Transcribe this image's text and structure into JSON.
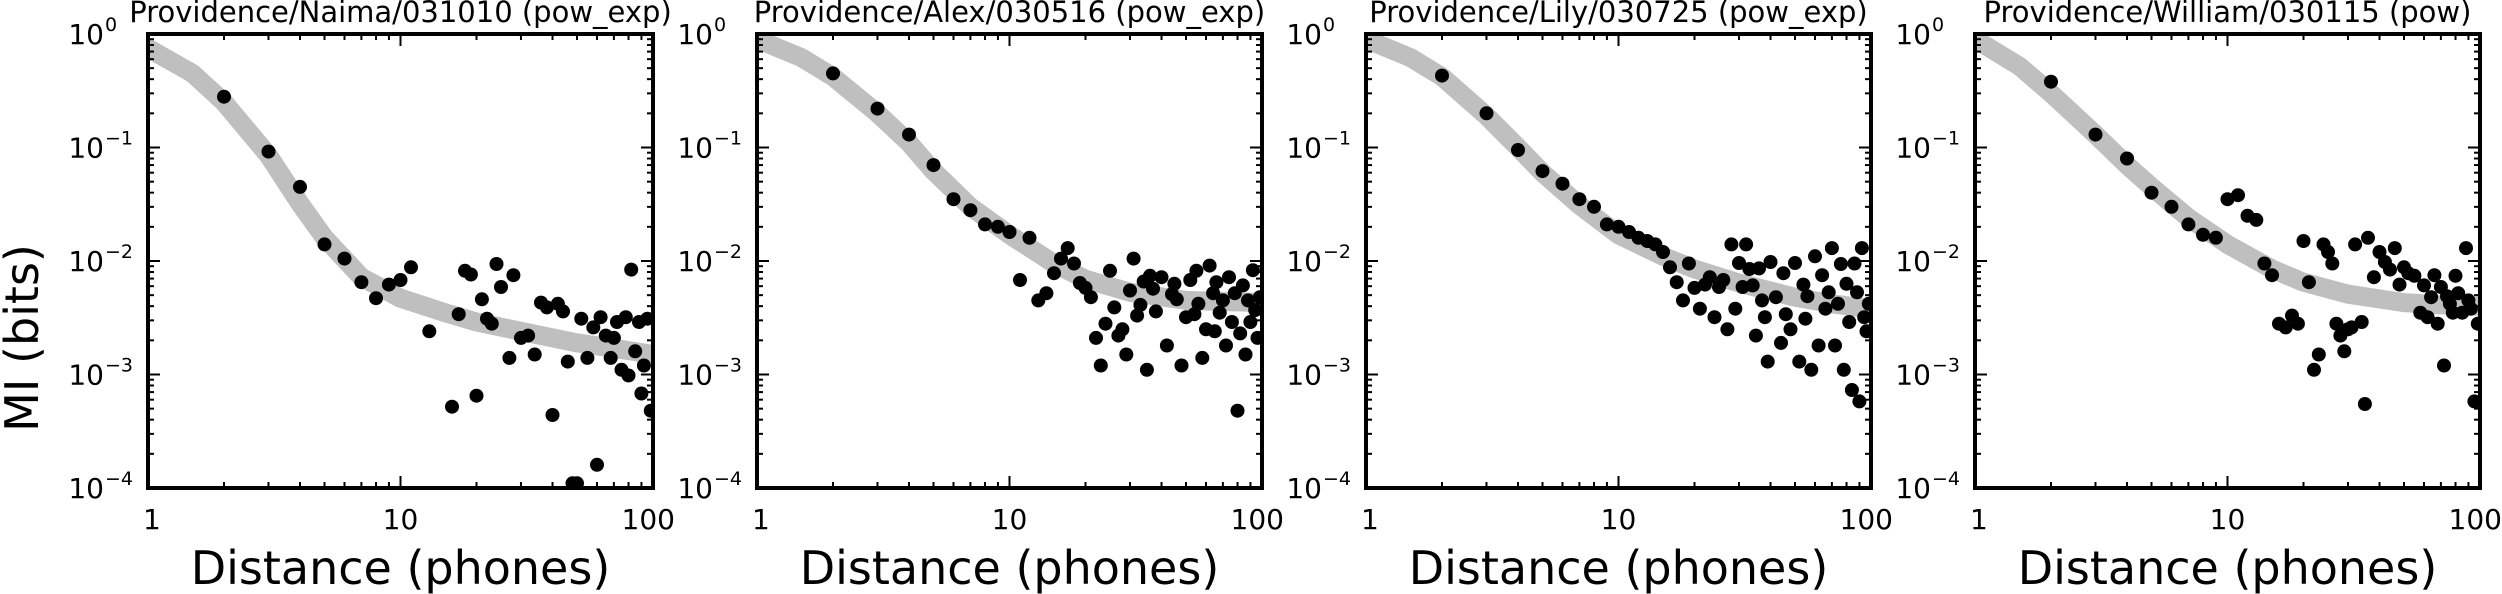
{
  "figure": {
    "ylabel": "MI (bits)"
  },
  "chart_data": [
    {
      "type": "scatter",
      "title": "Providence/Naima/031010 (pow_exp)",
      "xlabel": "Distance (phones)",
      "ylabel": "MI (bits)",
      "xscale": "log",
      "yscale": "log",
      "xlim": [
        1,
        100
      ],
      "ylim": [
        0.0001,
        1
      ],
      "x_ticks": [
        "1",
        "10",
        "100"
      ],
      "y_ticks": [
        {
          "base": "10",
          "exp": "−4"
        },
        {
          "base": "10",
          "exp": "−3"
        },
        {
          "base": "10",
          "exp": "−2"
        },
        {
          "base": "10",
          "exp": "−1"
        },
        {
          "base": "10",
          "exp": "0"
        }
      ],
      "fit": {
        "color": "#bfbfbf",
        "x": [
          1,
          1.5,
          2,
          3,
          4,
          5,
          7,
          10,
          15,
          20,
          30,
          50,
          70,
          100
        ],
        "y": [
          0.75,
          0.45,
          0.25,
          0.085,
          0.032,
          0.016,
          0.0072,
          0.0047,
          0.0035,
          0.0029,
          0.0024,
          0.0019,
          0.0017,
          0.0015
        ]
      },
      "points": {
        "color": "#000000",
        "x": [
          2,
          3,
          4,
          5,
          6,
          7,
          8,
          9,
          10,
          11,
          13,
          16,
          17,
          18,
          19,
          20,
          21,
          22,
          23,
          24,
          25,
          27,
          28,
          30,
          32,
          34,
          36,
          38,
          40,
          42,
          44,
          46,
          48,
          50,
          52,
          55,
          58,
          60,
          62,
          65,
          68,
          70,
          72,
          75,
          78,
          80,
          82,
          85,
          88,
          90,
          92,
          95,
          98
        ],
        "y": [
          0.28,
          0.092,
          0.045,
          0.014,
          0.0105,
          0.0065,
          0.0047,
          0.0062,
          0.0068,
          0.0088,
          0.0024,
          0.00052,
          0.0034,
          0.0082,
          0.0076,
          0.00065,
          0.0046,
          0.0031,
          0.0028,
          0.0094,
          0.0059,
          0.0014,
          0.0075,
          0.0021,
          0.0022,
          0.0015,
          0.0043,
          0.0039,
          0.00044,
          0.0042,
          0.0036,
          0.0013,
          0.00011,
          0.00011,
          0.0031,
          0.0014,
          0.0026,
          0.00016,
          0.0032,
          0.0022,
          0.0014,
          0.0021,
          0.0029,
          0.0011,
          0.0032,
          0.00098,
          0.0084,
          0.0016,
          0.0029,
          0.00068,
          0.0012,
          0.0031,
          0.00048
        ]
      }
    },
    {
      "type": "scatter",
      "title": "Providence/Alex/030516 (pow_exp)",
      "xlabel": "Distance (phones)",
      "ylabel": "",
      "xscale": "log",
      "yscale": "log",
      "xlim": [
        1,
        100
      ],
      "ylim": [
        0.0001,
        1
      ],
      "x_ticks": [
        "1",
        "10",
        "100"
      ],
      "y_ticks": [
        {
          "base": "10",
          "exp": "−4"
        },
        {
          "base": "10",
          "exp": "−3"
        },
        {
          "base": "10",
          "exp": "−2"
        },
        {
          "base": "10",
          "exp": "−1"
        },
        {
          "base": "10",
          "exp": "0"
        }
      ],
      "fit": {
        "color": "#bfbfbf",
        "x": [
          1,
          1.5,
          2,
          3,
          4,
          5,
          7,
          10,
          15,
          20,
          30,
          50,
          70,
          100
        ],
        "y": [
          0.9,
          0.62,
          0.42,
          0.2,
          0.11,
          0.062,
          0.03,
          0.017,
          0.0095,
          0.0069,
          0.0053,
          0.0045,
          0.0044,
          0.0043
        ]
      },
      "points": {
        "color": "#000000",
        "x": [
          2,
          3,
          4,
          5,
          6,
          7,
          8,
          9,
          10,
          11,
          12,
          13,
          14,
          15,
          16,
          17,
          18,
          19,
          20,
          21,
          22,
          23,
          24,
          25,
          26,
          27,
          28,
          29,
          30,
          31,
          32,
          33,
          34,
          35,
          36,
          37,
          38,
          40,
          42,
          44,
          45,
          46,
          48,
          50,
          52,
          54,
          55,
          56,
          58,
          60,
          62,
          64,
          65,
          66,
          68,
          70,
          72,
          74,
          76,
          78,
          80,
          82,
          84,
          86,
          88,
          90,
          92,
          94,
          96,
          98
        ],
        "y": [
          0.45,
          0.22,
          0.13,
          0.07,
          0.035,
          0.028,
          0.021,
          0.02,
          0.018,
          0.0068,
          0.016,
          0.0045,
          0.0052,
          0.0078,
          0.0105,
          0.013,
          0.0095,
          0.0064,
          0.0058,
          0.0048,
          0.0021,
          0.0012,
          0.0028,
          0.0082,
          0.0039,
          0.0022,
          0.0025,
          0.0015,
          0.0055,
          0.0105,
          0.0033,
          0.0041,
          0.0066,
          0.0011,
          0.0074,
          0.0057,
          0.0036,
          0.0072,
          0.0018,
          0.0051,
          0.0063,
          0.0046,
          0.0012,
          0.0032,
          0.0068,
          0.0034,
          0.0082,
          0.0042,
          0.0014,
          0.0025,
          0.0091,
          0.0052,
          0.0024,
          0.0065,
          0.0035,
          0.0045,
          0.0018,
          0.0072,
          0.0029,
          0.0052,
          0.00048,
          0.0023,
          0.0061,
          0.0015,
          0.0045,
          0.0029,
          0.0083,
          0.0037,
          0.0021,
          0.0048
        ]
      }
    },
    {
      "type": "scatter",
      "title": "Providence/Lily/030725 (pow_exp)",
      "xlabel": "Distance (phones)",
      "ylabel": "",
      "xscale": "log",
      "yscale": "log",
      "xlim": [
        1,
        100
      ],
      "ylim": [
        0.0001,
        1
      ],
      "x_ticks": [
        "1",
        "10",
        "100"
      ],
      "y_ticks": [
        {
          "base": "10",
          "exp": "−4"
        },
        {
          "base": "10",
          "exp": "−3"
        },
        {
          "base": "10",
          "exp": "−2"
        },
        {
          "base": "10",
          "exp": "−1"
        },
        {
          "base": "10",
          "exp": "0"
        }
      ],
      "fit": {
        "color": "#bfbfbf",
        "x": [
          1,
          1.5,
          2,
          3,
          4,
          5,
          7,
          10,
          15,
          20,
          30,
          50,
          70,
          100
        ],
        "y": [
          0.9,
          0.62,
          0.42,
          0.19,
          0.1,
          0.06,
          0.031,
          0.017,
          0.011,
          0.0085,
          0.0064,
          0.0048,
          0.0042,
          0.0038
        ]
      },
      "points": {
        "color": "#000000",
        "x": [
          2,
          3,
          4,
          5,
          6,
          7,
          8,
          9,
          10,
          11,
          12,
          13,
          14,
          15,
          16,
          17,
          18,
          19,
          20,
          21,
          22,
          23,
          24,
          25,
          26,
          27,
          28,
          29,
          30,
          31,
          32,
          33,
          34,
          35,
          36,
          37,
          38,
          39,
          40,
          42,
          44,
          45,
          46,
          48,
          50,
          52,
          54,
          55,
          56,
          58,
          60,
          62,
          64,
          66,
          68,
          70,
          72,
          74,
          76,
          78,
          80,
          82,
          84,
          86,
          88,
          90,
          92,
          94,
          96,
          98
        ],
        "y": [
          0.43,
          0.2,
          0.095,
          0.062,
          0.048,
          0.035,
          0.03,
          0.021,
          0.02,
          0.018,
          0.016,
          0.015,
          0.014,
          0.012,
          0.0088,
          0.0065,
          0.0045,
          0.0095,
          0.0058,
          0.0038,
          0.0062,
          0.0072,
          0.0032,
          0.0059,
          0.0068,
          0.0025,
          0.014,
          0.0038,
          0.0096,
          0.0059,
          0.014,
          0.0085,
          0.0061,
          0.0022,
          0.0086,
          0.0045,
          0.0032,
          0.0013,
          0.0098,
          0.0048,
          0.0019,
          0.0078,
          0.0034,
          0.0025,
          0.0096,
          0.0013,
          0.0062,
          0.0031,
          0.0049,
          0.0011,
          0.011,
          0.0018,
          0.0075,
          0.0038,
          0.0053,
          0.013,
          0.0018,
          0.0042,
          0.0094,
          0.0011,
          0.0063,
          0.0029,
          0.00073,
          0.0095,
          0.0053,
          0.00058,
          0.013,
          0.0032,
          0.0024,
          0.0042
        ]
      }
    },
    {
      "type": "scatter",
      "title": "Providence/William/030115 (pow)",
      "xlabel": "Distance (phones)",
      "ylabel": "",
      "xscale": "log",
      "yscale": "log",
      "xlim": [
        1,
        100
      ],
      "ylim": [
        0.0001,
        1
      ],
      "x_ticks": [
        "1",
        "10",
        "100"
      ],
      "y_ticks": [
        {
          "base": "10",
          "exp": "−4"
        },
        {
          "base": "10",
          "exp": "−3"
        },
        {
          "base": "10",
          "exp": "−2"
        },
        {
          "base": "10",
          "exp": "−1"
        },
        {
          "base": "10",
          "exp": "0"
        }
      ],
      "fit": {
        "color": "#bfbfbf",
        "x": [
          1,
          1.5,
          2,
          3,
          4,
          5,
          7,
          10,
          15,
          20,
          30,
          50,
          70,
          100
        ],
        "y": [
          0.9,
          0.52,
          0.3,
          0.13,
          0.07,
          0.045,
          0.024,
          0.014,
          0.0085,
          0.0065,
          0.0051,
          0.0043,
          0.0041,
          0.004
        ]
      },
      "points": {
        "color": "#000000",
        "x": [
          2,
          3,
          4,
          5,
          6,
          7,
          8,
          9,
          10,
          11,
          12,
          13,
          14,
          15,
          16,
          17,
          18,
          19,
          20,
          21,
          22,
          23,
          24,
          25,
          26,
          27,
          28,
          29,
          30,
          31,
          32,
          34,
          35,
          36,
          38,
          40,
          42,
          44,
          46,
          48,
          50,
          52,
          55,
          58,
          60,
          62,
          64,
          66,
          68,
          70,
          72,
          74,
          76,
          78,
          80,
          82,
          85,
          88,
          90,
          92,
          95,
          98
        ],
        "y": [
          0.38,
          0.13,
          0.08,
          0.04,
          0.03,
          0.021,
          0.017,
          0.016,
          0.035,
          0.038,
          0.025,
          0.023,
          0.0095,
          0.0075,
          0.0028,
          0.0026,
          0.0033,
          0.0028,
          0.015,
          0.0065,
          0.0011,
          0.0015,
          0.014,
          0.012,
          0.0095,
          0.0028,
          0.0022,
          0.0016,
          0.0025,
          0.0026,
          0.014,
          0.0029,
          0.00055,
          0.016,
          0.0072,
          0.012,
          0.0098,
          0.0084,
          0.013,
          0.0062,
          0.0088,
          0.0078,
          0.0074,
          0.0035,
          0.0061,
          0.0032,
          0.0048,
          0.0075,
          0.0028,
          0.0059,
          0.0012,
          0.0049,
          0.0042,
          0.0035,
          0.0074,
          0.0052,
          0.0035,
          0.013,
          0.0045,
          0.0038,
          0.00058,
          0.0028
        ]
      }
    }
  ]
}
